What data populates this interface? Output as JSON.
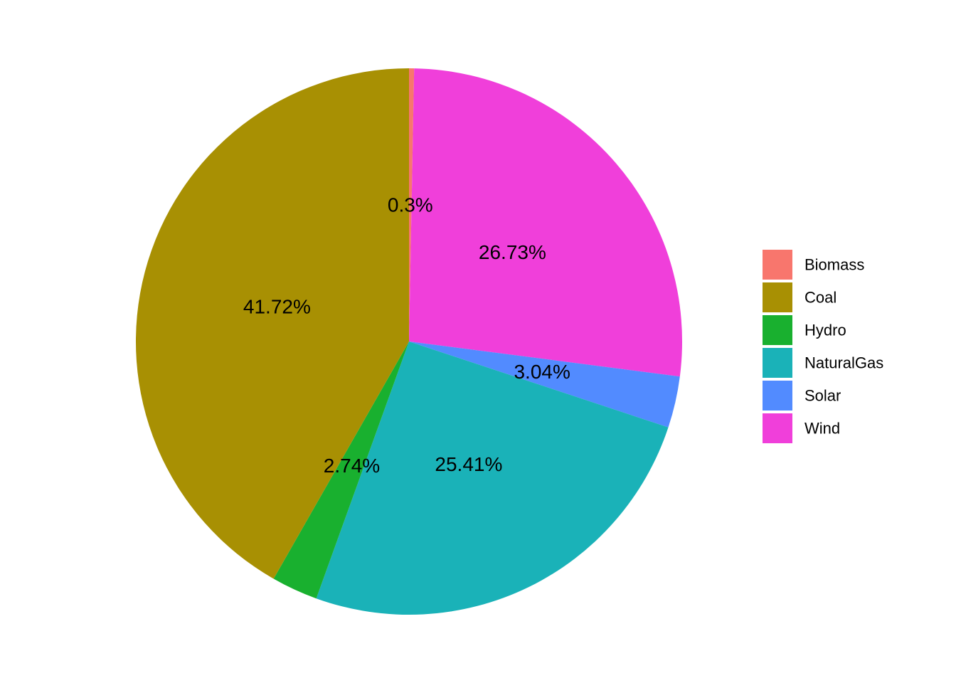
{
  "chart_data": {
    "type": "pie",
    "start": "12 o'clock",
    "direction": "clockwise",
    "legend_position": "right",
    "slices": [
      {
        "name": "Biomass",
        "value": 0.3,
        "label": "0.3%",
        "color": "#F8766D"
      },
      {
        "name": "Wind",
        "value": 26.73,
        "label": "26.73%",
        "color": "#F03FDA"
      },
      {
        "name": "Solar",
        "value": 3.04,
        "label": "3.04%",
        "color": "#528BFF"
      },
      {
        "name": "NaturalGas",
        "value": 25.41,
        "label": "25.41%",
        "color": "#1AB2B8"
      },
      {
        "name": "Hydro",
        "value": 2.74,
        "label": "2.74%",
        "color": "#19B02F"
      },
      {
        "name": "Coal",
        "value": 41.72,
        "label": "41.72%",
        "color": "#A89003"
      }
    ],
    "legend": [
      {
        "name": "Biomass",
        "color": "#F8766D"
      },
      {
        "name": "Coal",
        "color": "#A89003"
      },
      {
        "name": "Hydro",
        "color": "#19B02F"
      },
      {
        "name": "NaturalGas",
        "color": "#1AB2B8"
      },
      {
        "name": "Solar",
        "color": "#528BFF"
      },
      {
        "name": "Wind",
        "color": "#F03FDA"
      }
    ]
  }
}
